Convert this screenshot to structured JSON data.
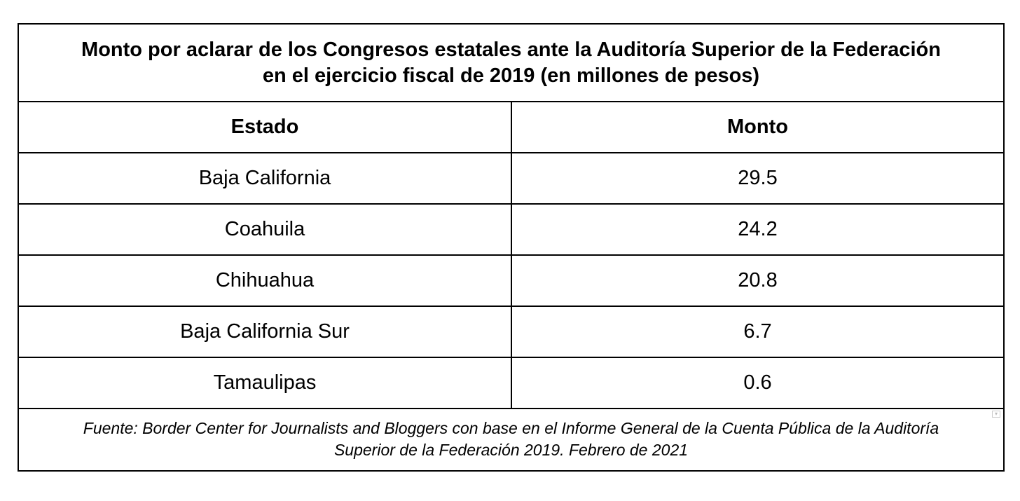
{
  "table": {
    "title_line1": "Monto por aclarar de los Congresos estatales ante la Auditoría Superior de la Federación",
    "title_line2": "en el ejercicio fiscal de 2019 (en millones de pesos)",
    "headers": {
      "estado": "Estado",
      "monto": "Monto"
    },
    "rows": [
      {
        "estado": "Baja California",
        "monto": "29.5"
      },
      {
        "estado": "Coahuila",
        "monto": "24.2"
      },
      {
        "estado": "Chihuahua",
        "monto": "20.8"
      },
      {
        "estado": "Baja California Sur",
        "monto": "6.7"
      },
      {
        "estado": "Tamaulipas",
        "monto": "0.6"
      }
    ],
    "source_line1": "Fuente: Border Center for Journalists and Bloggers con base en el Informe General de la Cuenta Pública de la Auditoría",
    "source_line2": "Superior de la Federación 2019. Febrero de 2021"
  },
  "icons": {
    "corner": "dropdown-corner-icon"
  }
}
